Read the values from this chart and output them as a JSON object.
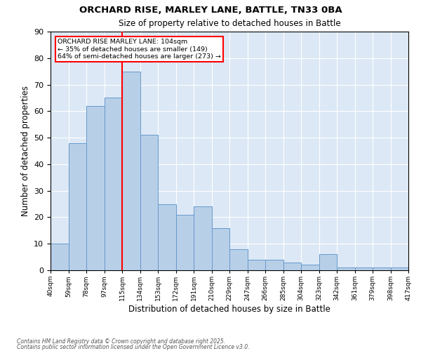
{
  "title1": "ORCHARD RISE, MARLEY LANE, BATTLE, TN33 0BA",
  "title2": "Size of property relative to detached houses in Battle",
  "xlabel": "Distribution of detached houses by size in Battle",
  "ylabel": "Number of detached properties",
  "bar_heights": [
    10,
    48,
    62,
    65,
    75,
    51,
    25,
    21,
    24,
    16,
    8,
    4,
    4,
    3,
    2,
    6,
    1,
    1,
    1,
    1
  ],
  "categories": [
    "40sqm",
    "59sqm",
    "78sqm",
    "97sqm",
    "115sqm",
    "134sqm",
    "153sqm",
    "172sqm",
    "191sqm",
    "210sqm",
    "229sqm",
    "247sqm",
    "266sqm",
    "285sqm",
    "304sqm",
    "323sqm",
    "342sqm",
    "361sqm",
    "379sqm",
    "398sqm",
    "417sqm"
  ],
  "bar_color": "#b8cfe8",
  "bar_edgecolor": "#6699cc",
  "bar_linewidth": 0.7,
  "redline_x": 4,
  "redline_color": "red",
  "redline_linewidth": 1.5,
  "annotation_title": "ORCHARD RISE MARLEY LANE: 104sqm",
  "annotation_line1": "← 35% of detached houses are smaller (149)",
  "annotation_line2": "64% of semi-detached houses are larger (273) →",
  "annotation_box_edgecolor": "red",
  "ylim": [
    0,
    90
  ],
  "yticks": [
    0,
    10,
    20,
    30,
    40,
    50,
    60,
    70,
    80,
    90
  ],
  "footnote1": "Contains HM Land Registry data © Crown copyright and database right 2025.",
  "footnote2": "Contains public sector information licensed under the Open Government Licence v3.0.",
  "background_color": "#dce8f5",
  "grid_color": "#ffffff",
  "fig_bg": "#ffffff"
}
